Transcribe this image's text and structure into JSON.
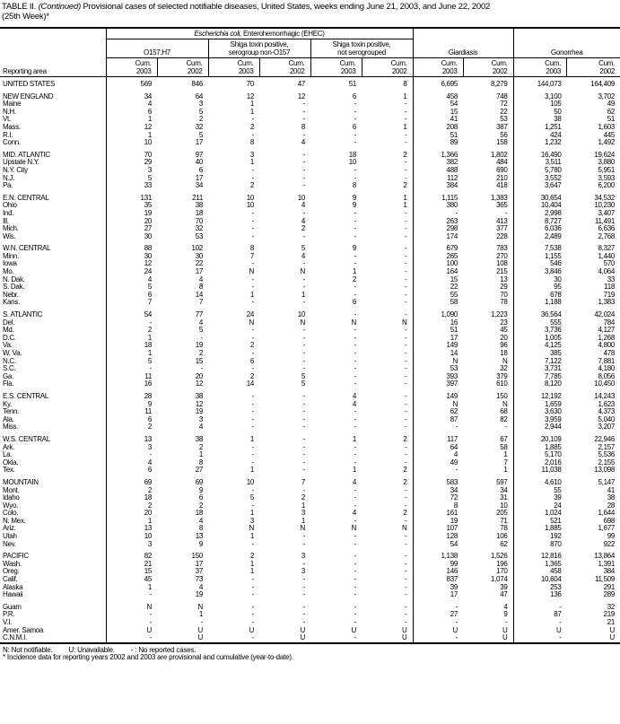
{
  "title": {
    "prefix": "TABLE II. ",
    "italic": "(Continued)",
    "text": " Provisional cases of selected notifiable diseases, United States, weeks ending June 21, 2003, and June 22, 2002",
    "line2": "(25th Week)*"
  },
  "header": {
    "reporting_area": "Reporting area",
    "ehec_italic": "Escherichia coli,",
    "ehec_rest": " Enterohemorrhagic (EHEC)",
    "o157": "O157:H7",
    "shiga1_l1": "Shiga toxin positive,",
    "shiga1_l2": "serogroup non-O157",
    "shiga2_l1": "Shiga toxin positive,",
    "shiga2_l2": "not serogrouped",
    "giardiasis": "Giardiasis",
    "gonorrhea": "Gonorrhea",
    "cum": "Cum.",
    "y2003": "2003",
    "y2002": "2002"
  },
  "groups": [
    [
      [
        "UNITED STATES",
        "569",
        "846",
        "70",
        "47",
        "51",
        "8",
        "6,695",
        "8,279",
        "144,073",
        "164,409"
      ]
    ],
    [
      [
        "NEW ENGLAND",
        "34",
        "64",
        "12",
        "12",
        "6",
        "1",
        "458",
        "748",
        "3,100",
        "3,702"
      ],
      [
        "Maine",
        "4",
        "3",
        "1",
        "-",
        "-",
        "-",
        "54",
        "72",
        "105",
        "49"
      ],
      [
        "N.H.",
        "6",
        "5",
        "1",
        "-",
        "-",
        "-",
        "15",
        "22",
        "50",
        "62"
      ],
      [
        "Vt.",
        "1",
        "2",
        "-",
        "-",
        "-",
        "-",
        "41",
        "53",
        "38",
        "51"
      ],
      [
        "Mass.",
        "12",
        "32",
        "2",
        "8",
        "6",
        "1",
        "208",
        "387",
        "1,251",
        "1,603"
      ],
      [
        "R.I.",
        "1",
        "5",
        "-",
        "-",
        "-",
        "-",
        "51",
        "56",
        "424",
        "445"
      ],
      [
        "Conn.",
        "10",
        "17",
        "8",
        "4",
        "-",
        "-",
        "89",
        "158",
        "1,232",
        "1,492"
      ]
    ],
    [
      [
        "MID. ATLANTIC",
        "70",
        "97",
        "3",
        "-",
        "18",
        "2",
        "1,366",
        "1,802",
        "16,490",
        "19,624"
      ],
      [
        "Upstate N.Y.",
        "29",
        "40",
        "1",
        "-",
        "10",
        "-",
        "382",
        "484",
        "3,511",
        "3,880"
      ],
      [
        "N.Y. City",
        "3",
        "6",
        "-",
        "-",
        "-",
        "-",
        "488",
        "690",
        "5,780",
        "5,951"
      ],
      [
        "N.J.",
        "5",
        "17",
        "-",
        "-",
        "-",
        "-",
        "112",
        "210",
        "3,552",
        "3,593"
      ],
      [
        "Pa.",
        "33",
        "34",
        "2",
        "-",
        "8",
        "2",
        "384",
        "418",
        "3,647",
        "6,200"
      ]
    ],
    [
      [
        "E.N. CENTRAL",
        "131",
        "211",
        "10",
        "10",
        "9",
        "1",
        "1,115",
        "1,383",
        "30,654",
        "34,532"
      ],
      [
        "Ohio",
        "35",
        "38",
        "10",
        "4",
        "9",
        "1",
        "380",
        "365",
        "10,404",
        "10,230"
      ],
      [
        "Ind.",
        "19",
        "18",
        "-",
        "-",
        "-",
        "-",
        "-",
        "-",
        "2,998",
        "3,407"
      ],
      [
        "Ill.",
        "20",
        "70",
        "-",
        "4",
        "-",
        "-",
        "263",
        "413",
        "8,727",
        "11,491"
      ],
      [
        "Mich.",
        "27",
        "32",
        "-",
        "2",
        "-",
        "-",
        "298",
        "377",
        "6,036",
        "6,636"
      ],
      [
        "Wis.",
        "30",
        "53",
        "-",
        "-",
        "-",
        "-",
        "174",
        "228",
        "2,489",
        "2,768"
      ]
    ],
    [
      [
        "W.N. CENTRAL",
        "88",
        "102",
        "8",
        "5",
        "9",
        "-",
        "679",
        "783",
        "7,538",
        "8,327"
      ],
      [
        "Minn.",
        "30",
        "30",
        "7",
        "4",
        "-",
        "-",
        "265",
        "270",
        "1,155",
        "1,440"
      ],
      [
        "Iowa",
        "12",
        "22",
        "-",
        "-",
        "-",
        "-",
        "100",
        "108",
        "546",
        "570"
      ],
      [
        "Mo.",
        "24",
        "17",
        "N",
        "N",
        "1",
        "-",
        "164",
        "215",
        "3,846",
        "4,064"
      ],
      [
        "N. Dak.",
        "4",
        "4",
        "-",
        "-",
        "2",
        "-",
        "15",
        "13",
        "30",
        "33"
      ],
      [
        "S. Dak.",
        "5",
        "8",
        "-",
        "-",
        "-",
        "-",
        "22",
        "29",
        "95",
        "118"
      ],
      [
        "Nebr.",
        "6",
        "14",
        "1",
        "1",
        "-",
        "-",
        "55",
        "70",
        "678",
        "719"
      ],
      [
        "Kans.",
        "7",
        "7",
        "-",
        "-",
        "6",
        "-",
        "58",
        "78",
        "1,188",
        "1,383"
      ]
    ],
    [
      [
        "S. ATLANTIC",
        "54",
        "77",
        "24",
        "10",
        "-",
        "-",
        "1,090",
        "1,223",
        "36,564",
        "42,024"
      ],
      [
        "Del.",
        "-",
        "4",
        "N",
        "N",
        "N",
        "N",
        "16",
        "23",
        "555",
        "784"
      ],
      [
        "Md.",
        "2",
        "5",
        "-",
        "-",
        "-",
        "-",
        "51",
        "45",
        "3,736",
        "4,127"
      ],
      [
        "D.C.",
        "1",
        "-",
        "-",
        "-",
        "-",
        "-",
        "17",
        "20",
        "1,005",
        "1,268"
      ],
      [
        "Va.",
        "18",
        "19",
        "2",
        "-",
        "-",
        "-",
        "149",
        "96",
        "4,125",
        "4,800"
      ],
      [
        "W. Va.",
        "1",
        "2",
        "-",
        "-",
        "-",
        "-",
        "14",
        "18",
        "385",
        "478"
      ],
      [
        "N.C.",
        "5",
        "15",
        "6",
        "-",
        "-",
        "-",
        "N",
        "N",
        "7,122",
        "7,881"
      ],
      [
        "S.C.",
        "-",
        "-",
        "-",
        "-",
        "-",
        "-",
        "53",
        "32",
        "3,731",
        "4,180"
      ],
      [
        "Ga.",
        "11",
        "20",
        "2",
        "5",
        "-",
        "-",
        "393",
        "379",
        "7,785",
        "8,056"
      ],
      [
        "Fla.",
        "16",
        "12",
        "14",
        "5",
        "-",
        "-",
        "397",
        "610",
        "8,120",
        "10,450"
      ]
    ],
    [
      [
        "E.S. CENTRAL",
        "28",
        "38",
        "-",
        "-",
        "4",
        "-",
        "149",
        "150",
        "12,192",
        "14,243"
      ],
      [
        "Ky.",
        "9",
        "12",
        "-",
        "-",
        "4",
        "-",
        "N",
        "N",
        "1,659",
        "1,623"
      ],
      [
        "Tenn.",
        "11",
        "19",
        "-",
        "-",
        "-",
        "-",
        "62",
        "68",
        "3,630",
        "4,373"
      ],
      [
        "Ala.",
        "6",
        "3",
        "-",
        "-",
        "-",
        "-",
        "87",
        "82",
        "3,959",
        "5,040"
      ],
      [
        "Miss.",
        "2",
        "4",
        "-",
        "-",
        "-",
        "-",
        "-",
        "-",
        "2,944",
        "3,207"
      ]
    ],
    [
      [
        "W.S. CENTRAL",
        "13",
        "38",
        "1",
        "-",
        "1",
        "2",
        "117",
        "67",
        "20,109",
        "22,946"
      ],
      [
        "Ark.",
        "3",
        "2",
        "-",
        "-",
        "-",
        "-",
        "64",
        "58",
        "1,885",
        "2,157"
      ],
      [
        "La.",
        "-",
        "1",
        "-",
        "-",
        "-",
        "-",
        "4",
        "1",
        "5,170",
        "5,536"
      ],
      [
        "Okla.",
        "4",
        "8",
        "-",
        "-",
        "-",
        "-",
        "49",
        "7",
        "2,016",
        "2,155"
      ],
      [
        "Tex.",
        "6",
        "27",
        "1",
        "-",
        "1",
        "2",
        "-",
        "1",
        "11,038",
        "13,098"
      ]
    ],
    [
      [
        "MOUNTAIN",
        "69",
        "69",
        "10",
        "7",
        "4",
        "2",
        "583",
        "597",
        "4,610",
        "5,147"
      ],
      [
        "Mont.",
        "2",
        "9",
        "-",
        "-",
        "-",
        "-",
        "34",
        "34",
        "55",
        "41"
      ],
      [
        "Idaho",
        "18",
        "6",
        "5",
        "2",
        "-",
        "-",
        "72",
        "31",
        "39",
        "38"
      ],
      [
        "Wyo.",
        "2",
        "2",
        "-",
        "1",
        "-",
        "-",
        "8",
        "10",
        "24",
        "28"
      ],
      [
        "Colo.",
        "20",
        "18",
        "1",
        "3",
        "4",
        "2",
        "161",
        "205",
        "1,024",
        "1,644"
      ],
      [
        "N. Mex.",
        "1",
        "4",
        "3",
        "1",
        "-",
        "-",
        "19",
        "71",
        "521",
        "698"
      ],
      [
        "Ariz.",
        "13",
        "8",
        "N",
        "N",
        "N",
        "N",
        "107",
        "78",
        "1,885",
        "1,677"
      ],
      [
        "Utah",
        "10",
        "13",
        "1",
        "-",
        "-",
        "-",
        "128",
        "106",
        "192",
        "99"
      ],
      [
        "Nev.",
        "3",
        "9",
        "-",
        "-",
        "-",
        "-",
        "54",
        "62",
        "870",
        "922"
      ]
    ],
    [
      [
        "PACIFIC",
        "82",
        "150",
        "2",
        "3",
        "-",
        "-",
        "1,138",
        "1,526",
        "12,816",
        "13,864"
      ],
      [
        "Wash.",
        "21",
        "17",
        "1",
        "-",
        "-",
        "-",
        "99",
        "196",
        "1,365",
        "1,391"
      ],
      [
        "Oreg.",
        "15",
        "37",
        "1",
        "3",
        "-",
        "-",
        "146",
        "170",
        "458",
        "384"
      ],
      [
        "Calif.",
        "45",
        "73",
        "-",
        "-",
        "-",
        "-",
        "837",
        "1,074",
        "10,604",
        "11,509"
      ],
      [
        "Alaska",
        "1",
        "4",
        "-",
        "-",
        "-",
        "-",
        "39",
        "39",
        "253",
        "291"
      ],
      [
        "Hawaii",
        "-",
        "19",
        "-",
        "-",
        "-",
        "-",
        "17",
        "47",
        "136",
        "289"
      ]
    ],
    [
      [
        "Guam",
        "N",
        "N",
        "-",
        "-",
        "-",
        "-",
        "-",
        "4",
        "-",
        "32"
      ],
      [
        "P.R.",
        "-",
        "1",
        "-",
        "-",
        "-",
        "-",
        "27",
        "9",
        "87",
        "219"
      ],
      [
        "V.I.",
        "-",
        "-",
        "-",
        "-",
        "-",
        "-",
        "-",
        "-",
        "-",
        "21"
      ],
      [
        "Amer. Samoa",
        "U",
        "U",
        "U",
        "U",
        "U",
        "U",
        "U",
        "U",
        "U",
        "U"
      ],
      [
        "C.N.M.I.",
        "-",
        "U",
        "-",
        "U",
        "-",
        "U",
        "-",
        "U",
        "-",
        "U"
      ]
    ]
  ],
  "footer": {
    "n": "N: Not notifiable.",
    "u": "U: Unavailable.",
    "dash": "- : No reported cases.",
    "note": "* Incidence data for reporting years 2002 and 2003 are provisional and cumulative (year-to-date)."
  }
}
